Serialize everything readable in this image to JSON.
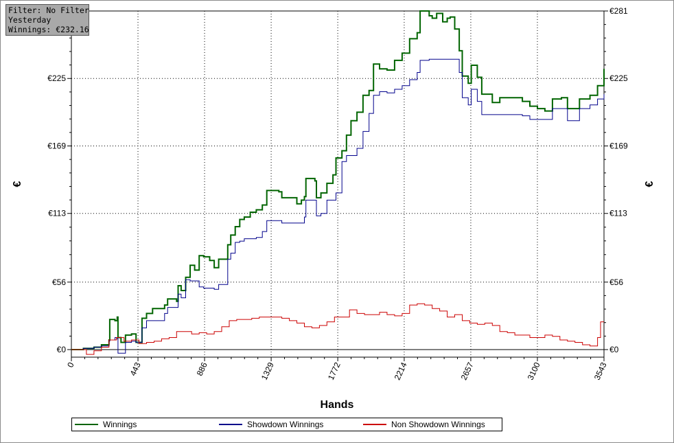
{
  "info": {
    "filter": "Filter: No Filter",
    "period": "Yesterday",
    "winnings": "Winnings: €232.16"
  },
  "chart_data": {
    "type": "line",
    "xlabel": "Hands",
    "ylabel_left": "€",
    "ylabel_right": "€",
    "xlim": [
      0,
      3543
    ],
    "ylim": [
      -6,
      281
    ],
    "x_ticks": [
      0,
      443,
      886,
      1329,
      1772,
      2214,
      2657,
      3100,
      3543
    ],
    "y_ticks": [
      0,
      56,
      113,
      169,
      225,
      281
    ],
    "y_tick_labels": [
      "€0",
      "€56",
      "€113",
      "€169",
      "€225",
      "€281"
    ],
    "grid": true,
    "legend_position": "bottom",
    "series": [
      {
        "name": "Winnings",
        "color": "#006400",
        "points": [
          [
            0,
            0
          ],
          [
            80,
            1
          ],
          [
            150,
            2
          ],
          [
            200,
            4
          ],
          [
            250,
            8
          ],
          [
            255,
            25
          ],
          [
            290,
            24
          ],
          [
            305,
            27
          ],
          [
            310,
            10
          ],
          [
            330,
            6
          ],
          [
            350,
            6
          ],
          [
            360,
            12
          ],
          [
            400,
            13
          ],
          [
            430,
            6
          ],
          [
            470,
            26
          ],
          [
            500,
            30
          ],
          [
            540,
            34
          ],
          [
            600,
            34
          ],
          [
            620,
            37
          ],
          [
            640,
            42
          ],
          [
            700,
            40
          ],
          [
            710,
            53
          ],
          [
            730,
            49
          ],
          [
            760,
            60
          ],
          [
            790,
            70
          ],
          [
            820,
            66
          ],
          [
            850,
            78
          ],
          [
            880,
            77
          ],
          [
            920,
            74
          ],
          [
            950,
            68
          ],
          [
            980,
            75
          ],
          [
            1040,
            87
          ],
          [
            1060,
            95
          ],
          [
            1090,
            102
          ],
          [
            1120,
            108
          ],
          [
            1150,
            110
          ],
          [
            1190,
            114
          ],
          [
            1230,
            116
          ],
          [
            1270,
            120
          ],
          [
            1300,
            132
          ],
          [
            1380,
            131
          ],
          [
            1400,
            126
          ],
          [
            1500,
            121
          ],
          [
            1530,
            124
          ],
          [
            1550,
            127
          ],
          [
            1560,
            142
          ],
          [
            1620,
            140
          ],
          [
            1630,
            126
          ],
          [
            1660,
            130
          ],
          [
            1700,
            138
          ],
          [
            1740,
            145
          ],
          [
            1760,
            159
          ],
          [
            1800,
            165
          ],
          [
            1830,
            178
          ],
          [
            1860,
            190
          ],
          [
            1900,
            197
          ],
          [
            1940,
            211
          ],
          [
            1980,
            215
          ],
          [
            2010,
            237
          ],
          [
            2050,
            233
          ],
          [
            2100,
            232
          ],
          [
            2150,
            240
          ],
          [
            2200,
            246
          ],
          [
            2250,
            258
          ],
          [
            2300,
            263
          ],
          [
            2320,
            281
          ],
          [
            2380,
            277
          ],
          [
            2400,
            275
          ],
          [
            2430,
            279
          ],
          [
            2470,
            272
          ],
          [
            2500,
            275
          ],
          [
            2520,
            276
          ],
          [
            2550,
            266
          ],
          [
            2580,
            248
          ],
          [
            2600,
            227
          ],
          [
            2640,
            221
          ],
          [
            2660,
            236
          ],
          [
            2700,
            226
          ],
          [
            2730,
            212
          ],
          [
            2800,
            205
          ],
          [
            2850,
            209
          ],
          [
            3000,
            206
          ],
          [
            3050,
            202
          ],
          [
            3100,
            200
          ],
          [
            3150,
            198
          ],
          [
            3200,
            208
          ],
          [
            3260,
            209
          ],
          [
            3300,
            200
          ],
          [
            3380,
            208
          ],
          [
            3450,
            211
          ],
          [
            3500,
            219
          ],
          [
            3543,
            233
          ]
        ]
      },
      {
        "name": "Showdown Winnings",
        "color": "#00008b",
        "points": [
          [
            0,
            0
          ],
          [
            80,
            1
          ],
          [
            150,
            2
          ],
          [
            200,
            3
          ],
          [
            250,
            7
          ],
          [
            255,
            8
          ],
          [
            290,
            10
          ],
          [
            305,
            9
          ],
          [
            310,
            -3
          ],
          [
            330,
            -3
          ],
          [
            360,
            6
          ],
          [
            400,
            7
          ],
          [
            430,
            6
          ],
          [
            470,
            18
          ],
          [
            500,
            24
          ],
          [
            540,
            24
          ],
          [
            600,
            24
          ],
          [
            620,
            30
          ],
          [
            640,
            35
          ],
          [
            700,
            35
          ],
          [
            710,
            46
          ],
          [
            730,
            43
          ],
          [
            760,
            58
          ],
          [
            790,
            57
          ],
          [
            820,
            57
          ],
          [
            850,
            52
          ],
          [
            880,
            51
          ],
          [
            920,
            51
          ],
          [
            950,
            50
          ],
          [
            980,
            54
          ],
          [
            1040,
            75
          ],
          [
            1060,
            80
          ],
          [
            1090,
            89
          ],
          [
            1120,
            90
          ],
          [
            1150,
            92
          ],
          [
            1190,
            92
          ],
          [
            1230,
            93
          ],
          [
            1270,
            98
          ],
          [
            1300,
            107
          ],
          [
            1380,
            107
          ],
          [
            1400,
            105
          ],
          [
            1500,
            105
          ],
          [
            1530,
            105
          ],
          [
            1550,
            110
          ],
          [
            1560,
            124
          ],
          [
            1620,
            124
          ],
          [
            1630,
            111
          ],
          [
            1660,
            113
          ],
          [
            1700,
            124
          ],
          [
            1740,
            124
          ],
          [
            1760,
            130
          ],
          [
            1800,
            156
          ],
          [
            1830,
            161
          ],
          [
            1860,
            161
          ],
          [
            1900,
            167
          ],
          [
            1940,
            181
          ],
          [
            1980,
            196
          ],
          [
            2010,
            211
          ],
          [
            2050,
            214
          ],
          [
            2100,
            213
          ],
          [
            2150,
            216
          ],
          [
            2200,
            219
          ],
          [
            2250,
            224
          ],
          [
            2300,
            230
          ],
          [
            2320,
            240
          ],
          [
            2380,
            241
          ],
          [
            2400,
            241
          ],
          [
            2430,
            241
          ],
          [
            2470,
            241
          ],
          [
            2500,
            241
          ],
          [
            2520,
            241
          ],
          [
            2550,
            241
          ],
          [
            2580,
            230
          ],
          [
            2600,
            209
          ],
          [
            2640,
            203
          ],
          [
            2660,
            216
          ],
          [
            2700,
            206
          ],
          [
            2730,
            195
          ],
          [
            2800,
            195
          ],
          [
            2850,
            195
          ],
          [
            3000,
            194
          ],
          [
            3050,
            191
          ],
          [
            3100,
            191
          ],
          [
            3150,
            191
          ],
          [
            3200,
            200
          ],
          [
            3260,
            200
          ],
          [
            3300,
            190
          ],
          [
            3380,
            200
          ],
          [
            3450,
            203
          ],
          [
            3500,
            208
          ],
          [
            3543,
            212
          ]
        ]
      },
      {
        "name": "Non Showdown Winnings",
        "color": "#cc0000",
        "points": [
          [
            0,
            0
          ],
          [
            50,
            0
          ],
          [
            100,
            -4
          ],
          [
            150,
            -1
          ],
          [
            200,
            2
          ],
          [
            250,
            8
          ],
          [
            300,
            10
          ],
          [
            350,
            7
          ],
          [
            400,
            8
          ],
          [
            450,
            5
          ],
          [
            500,
            6
          ],
          [
            550,
            7
          ],
          [
            600,
            9
          ],
          [
            650,
            10
          ],
          [
            700,
            15
          ],
          [
            750,
            15
          ],
          [
            800,
            13
          ],
          [
            850,
            14
          ],
          [
            900,
            13
          ],
          [
            950,
            15
          ],
          [
            1000,
            19
          ],
          [
            1050,
            24
          ],
          [
            1100,
            25
          ],
          [
            1150,
            25
          ],
          [
            1200,
            26
          ],
          [
            1250,
            27
          ],
          [
            1300,
            27
          ],
          [
            1350,
            27
          ],
          [
            1400,
            26
          ],
          [
            1450,
            24
          ],
          [
            1500,
            22
          ],
          [
            1550,
            19
          ],
          [
            1600,
            18
          ],
          [
            1650,
            20
          ],
          [
            1700,
            23
          ],
          [
            1750,
            27
          ],
          [
            1800,
            27
          ],
          [
            1850,
            33
          ],
          [
            1900,
            30
          ],
          [
            1950,
            29
          ],
          [
            2000,
            29
          ],
          [
            2050,
            31
          ],
          [
            2100,
            29
          ],
          [
            2150,
            28
          ],
          [
            2200,
            30
          ],
          [
            2250,
            37
          ],
          [
            2300,
            38
          ],
          [
            2350,
            37
          ],
          [
            2400,
            34
          ],
          [
            2450,
            32
          ],
          [
            2500,
            27
          ],
          [
            2550,
            29
          ],
          [
            2600,
            24
          ],
          [
            2650,
            22
          ],
          [
            2700,
            21
          ],
          [
            2750,
            22
          ],
          [
            2800,
            20
          ],
          [
            2850,
            15
          ],
          [
            2900,
            14
          ],
          [
            2950,
            12
          ],
          [
            3000,
            12
          ],
          [
            3050,
            10
          ],
          [
            3100,
            10
          ],
          [
            3150,
            12
          ],
          [
            3200,
            11
          ],
          [
            3250,
            8
          ],
          [
            3300,
            7
          ],
          [
            3350,
            6
          ],
          [
            3400,
            4
          ],
          [
            3450,
            3
          ],
          [
            3500,
            10
          ],
          [
            3520,
            23
          ],
          [
            3543,
            23
          ]
        ]
      }
    ]
  }
}
